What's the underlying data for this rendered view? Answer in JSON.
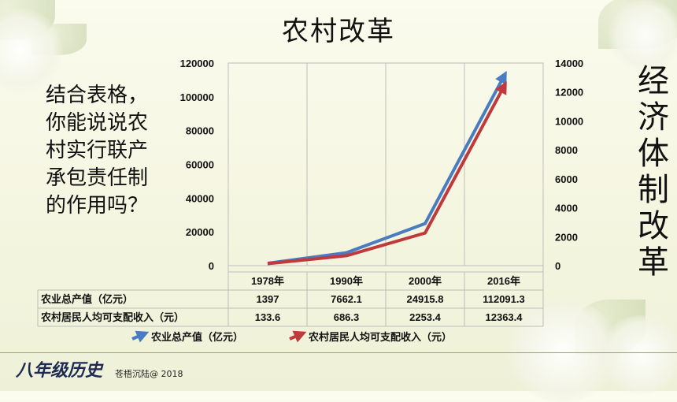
{
  "title": "农村改革",
  "question": [
    "结合表格，",
    "你能说说农",
    "村实行联产",
    "承包责任制",
    "的作用吗？"
  ],
  "side_label": [
    "经",
    "济",
    "体",
    "制",
    "改",
    "革"
  ],
  "footer": {
    "brand": "八年级历史",
    "credit": "苍梧沉陆@ 2018"
  },
  "colors": {
    "series1": "#4a7cc2",
    "series2": "#c0393c"
  },
  "chart_data": {
    "type": "line",
    "categories": [
      "1978年",
      "1990年",
      "2000年",
      "2016年"
    ],
    "series": [
      {
        "name": "农业总产值（亿元）",
        "axis": "left",
        "values": [
          1397,
          7662.1,
          24915.8,
          112091.3
        ],
        "labels": [
          "1397",
          "7662.1",
          "24915.8",
          "112091.3"
        ]
      },
      {
        "name": "农村居民人均可支配收入（元）",
        "axis": "right",
        "values": [
          133.6,
          686.3,
          2253.4,
          12363.4
        ],
        "labels": [
          "133.6",
          "686.3",
          "2253.4",
          "12363.4"
        ]
      }
    ],
    "y_left": {
      "min": 0,
      "max": 120000,
      "ticks": [
        "120000",
        "100000",
        "80000",
        "60000",
        "40000",
        "20000",
        "0"
      ]
    },
    "y_right": {
      "min": 0,
      "max": 14000,
      "ticks": [
        "14000",
        "12000",
        "10000",
        "8000",
        "6000",
        "4000",
        "2000",
        "0"
      ]
    },
    "grid": true,
    "legend": "bottom",
    "data_table": true
  }
}
